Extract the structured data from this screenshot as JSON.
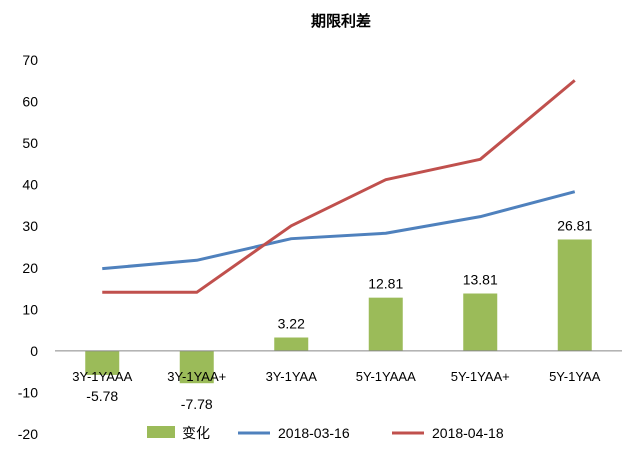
{
  "chart_data": {
    "type": "bar+line",
    "title": "期限利差",
    "categories": [
      "3Y-1YAAA",
      "3Y-1YAA+",
      "3Y-1YAA",
      "5Y-1YAAA",
      "5Y-1YAA+",
      "5Y-1YAA"
    ],
    "ylim": [
      -20,
      70
    ],
    "yticks": [
      -20,
      -10,
      0,
      10,
      20,
      30,
      40,
      50,
      60,
      70
    ],
    "grid": false,
    "legend_position": "bottom",
    "bar_series": {
      "name": "变化",
      "values": [
        -5.78,
        -7.78,
        3.22,
        12.81,
        13.81,
        26.81
      ],
      "labels": [
        "-5.78",
        "-7.78",
        "3.22",
        "12.81",
        "13.81",
        "26.81"
      ],
      "color": "#9bbb59"
    },
    "line_series": [
      {
        "name": "2018-03-16",
        "values": [
          19.8,
          21.8,
          27.0,
          28.3,
          32.3,
          38.3
        ],
        "color": "#4f81bd"
      },
      {
        "name": "2018-04-18",
        "values": [
          14.1,
          14.1,
          30.1,
          41.2,
          46.1,
          65.1
        ],
        "color": "#c0504d"
      }
    ]
  }
}
